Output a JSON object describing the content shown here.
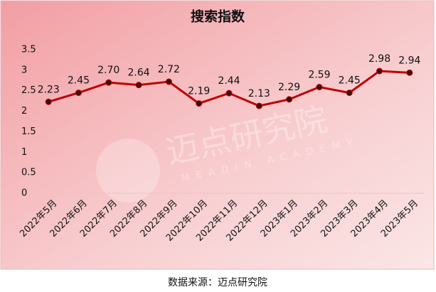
{
  "chart_data": {
    "type": "line",
    "title": "搜索指数",
    "categories": [
      "2022年5月",
      "2022年6月",
      "2022年7月",
      "2022年8月",
      "2022年9月",
      "2022年10月",
      "2022年11月",
      "2022年12月",
      "2023年1月",
      "2023年2月",
      "2023年3月",
      "2023年4月",
      "2023年5月"
    ],
    "values": [
      2.23,
      2.45,
      2.7,
      2.64,
      2.72,
      2.19,
      2.44,
      2.13,
      2.29,
      2.59,
      2.45,
      2.98,
      2.94
    ],
    "value_labels": [
      "2.23",
      "2.45",
      "2.70",
      "2.64",
      "2.72",
      "2.19",
      "2.44",
      "2.13",
      "2.29",
      "2.59",
      "2.45",
      "2.98",
      "2.94"
    ],
    "color": "#c00000",
    "ylim": [
      0,
      3.5
    ],
    "yticks": [
      0,
      0.5,
      1,
      1.5,
      2,
      2.5,
      3,
      3.5
    ],
    "grid": false,
    "watermark": "迈点研究院",
    "watermark_sub": "MEADIN ACADEMY",
    "source": "数据来源：迈点研究院"
  }
}
